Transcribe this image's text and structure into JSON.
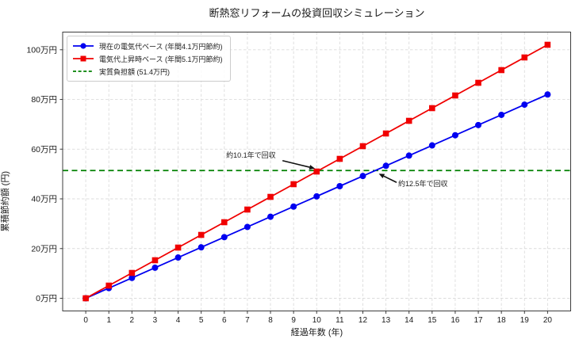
{
  "chart_data": {
    "type": "line",
    "title": "断熱窓リフォームの投資回収シミュレーション",
    "xlabel": "経過年数 (年)",
    "ylabel": "累積節約額 (円)",
    "x": [
      0,
      1,
      2,
      3,
      4,
      5,
      6,
      7,
      8,
      9,
      10,
      11,
      12,
      13,
      14,
      15,
      16,
      17,
      18,
      19,
      20
    ],
    "xlim": [
      -1,
      21
    ],
    "ylim": [
      -5.1,
      107.1
    ],
    "grid": true,
    "legend_position": "upper-left",
    "yticks": [
      {
        "value": 0,
        "label": "0万円"
      },
      {
        "value": 20,
        "label": "20万円"
      },
      {
        "value": 40,
        "label": "40万円"
      },
      {
        "value": 60,
        "label": "60万円"
      },
      {
        "value": 80,
        "label": "80万円"
      },
      {
        "value": 100,
        "label": "100万円"
      }
    ],
    "series": [
      {
        "name": "現在の電気代ベース (年間4.1万円節約)",
        "color": "#0000f0",
        "marker": "circle",
        "annual_saving_10k_yen": 4.1,
        "values": [
          0,
          4.1,
          8.2,
          12.3,
          16.4,
          20.5,
          24.6,
          28.7,
          32.8,
          36.9,
          41.0,
          45.1,
          49.2,
          53.3,
          57.4,
          61.5,
          65.6,
          69.7,
          73.8,
          77.9,
          82.0
        ]
      },
      {
        "name": "電気代上昇時ベース (年間5.1万円節約)",
        "color": "#f00000",
        "marker": "square",
        "annual_saving_10k_yen": 5.1,
        "values": [
          0,
          5.1,
          10.2,
          15.3,
          20.4,
          25.5,
          30.6,
          35.7,
          40.8,
          45.9,
          51.0,
          56.1,
          61.2,
          66.3,
          71.4,
          76.5,
          81.6,
          86.7,
          91.8,
          96.9,
          102.0
        ]
      }
    ],
    "reference_line": {
      "name": "実質負担額 (51.4万円)",
      "value": 51.4,
      "color": "#008000",
      "style": "dashed"
    },
    "annotations": [
      {
        "text": "約10.1年で回収",
        "x": 10.1,
        "y": 51.4,
        "placement": "upper-left"
      },
      {
        "text": "約12.5年で回収",
        "x": 12.5,
        "y": 51.4,
        "placement": "lower-right"
      }
    ],
    "colors": {
      "grid": "#dcdcdc",
      "spine": "#3c3c3c",
      "text": "#1a1a1a",
      "arrow": "#111111"
    }
  }
}
